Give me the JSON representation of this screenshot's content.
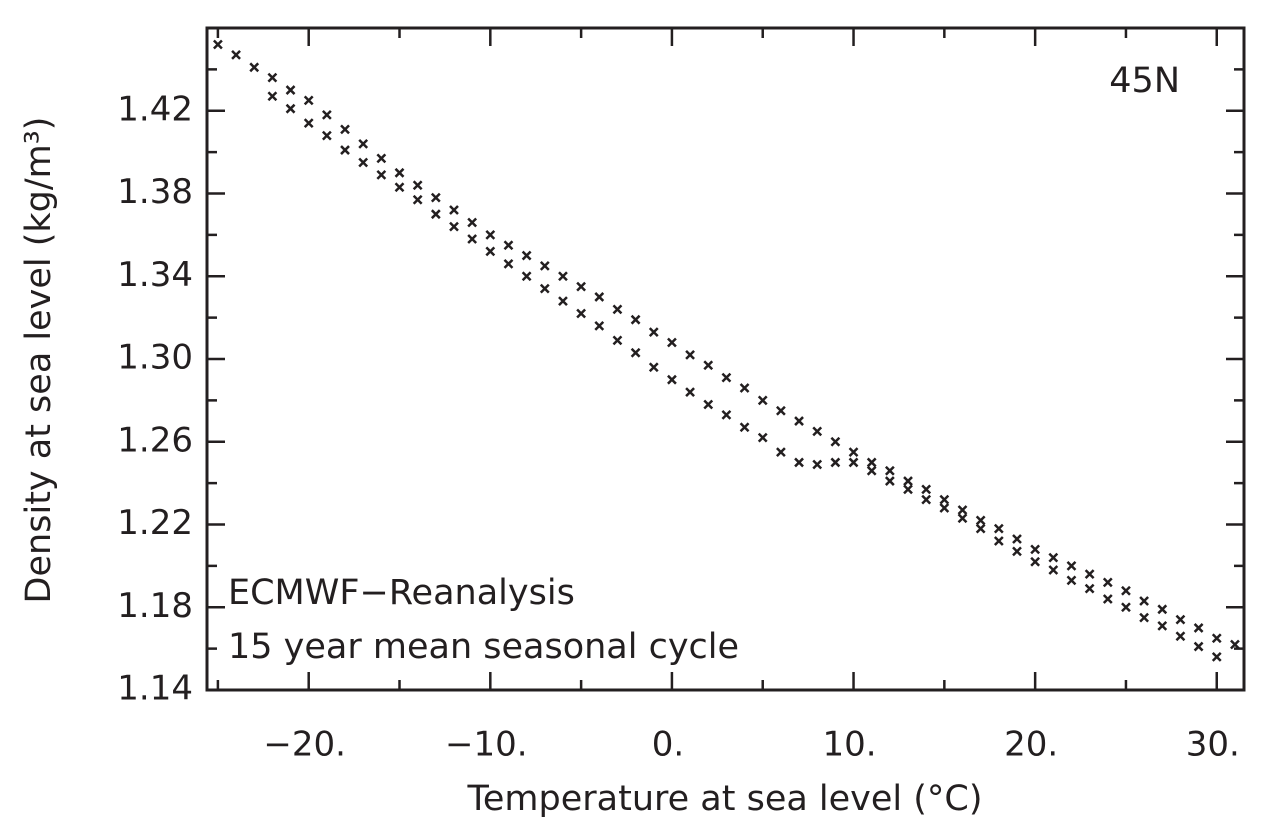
{
  "chart_data": {
    "type": "scatter",
    "xlabel": "Temperature at sea level (°C)",
    "ylabel": "Density at sea level (kg/m³)",
    "annotations": [
      "45N",
      "ECMWF−Reanalysis",
      "15 year mean seasonal cycle"
    ],
    "xlim": [
      -25.6,
      31.5
    ],
    "ylim": [
      1.14,
      1.46
    ],
    "xticks": [
      {
        "value": -20,
        "label": "−20."
      },
      {
        "value": -10,
        "label": "−10."
      },
      {
        "value": 0,
        "label": "0."
      },
      {
        "value": 10,
        "label": "10."
      },
      {
        "value": 20,
        "label": "20."
      },
      {
        "value": 30,
        "label": "30."
      }
    ],
    "xminorticks": [
      -25,
      -15,
      -5,
      5,
      15,
      25
    ],
    "yticks": [
      {
        "value": 1.14,
        "label": "1.14"
      },
      {
        "value": 1.18,
        "label": "1.18"
      },
      {
        "value": 1.22,
        "label": "1.22"
      },
      {
        "value": 1.26,
        "label": "1.26"
      },
      {
        "value": 1.3,
        "label": "1.30"
      },
      {
        "value": 1.34,
        "label": "1.34"
      },
      {
        "value": 1.38,
        "label": "1.38"
      },
      {
        "value": 1.42,
        "label": "1.42"
      }
    ],
    "yminorticks": [
      1.16,
      1.2,
      1.24,
      1.28,
      1.32,
      1.36,
      1.4,
      1.44
    ],
    "series": [
      {
        "color": "#231f20",
        "x": [
          -25,
          -24,
          -23,
          -22,
          -21,
          -20,
          -19,
          -18,
          -17,
          -16,
          -15,
          -14,
          -13,
          -12,
          -11,
          -10,
          -9,
          -8,
          -7,
          -6,
          -5,
          -4,
          -3,
          -2,
          -1,
          0,
          1,
          2,
          3,
          4,
          5,
          6,
          7,
          8,
          9,
          10,
          11,
          12,
          13,
          14,
          15,
          16,
          17,
          18,
          19,
          20,
          21,
          22,
          23,
          24,
          25,
          26,
          27,
          28,
          29,
          30,
          31,
          -22,
          -21,
          -20,
          -19,
          -18,
          -17,
          -16,
          -15,
          -14,
          -13,
          -12,
          -11,
          -10,
          -9,
          -8,
          -7,
          -6,
          -5,
          -4,
          -3,
          -2,
          -1,
          0,
          1,
          2,
          3,
          4,
          5,
          6,
          7,
          8,
          9,
          10,
          11,
          12,
          13,
          14,
          15,
          16,
          17,
          18,
          19,
          20,
          21,
          22,
          23,
          24,
          25,
          26,
          27,
          28,
          29,
          30
        ],
        "y": [
          1.452,
          1.447,
          1.441,
          1.436,
          1.43,
          1.425,
          1.418,
          1.411,
          1.404,
          1.397,
          1.39,
          1.384,
          1.378,
          1.372,
          1.366,
          1.36,
          1.355,
          1.35,
          1.345,
          1.34,
          1.335,
          1.33,
          1.324,
          1.319,
          1.313,
          1.308,
          1.302,
          1.297,
          1.291,
          1.286,
          1.28,
          1.275,
          1.27,
          1.265,
          1.26,
          1.255,
          1.25,
          1.246,
          1.241,
          1.237,
          1.232,
          1.227,
          1.222,
          1.218,
          1.213,
          1.208,
          1.204,
          1.2,
          1.196,
          1.192,
          1.188,
          1.183,
          1.179,
          1.174,
          1.17,
          1.165,
          1.162,
          1.427,
          1.421,
          1.414,
          1.408,
          1.401,
          1.395,
          1.389,
          1.383,
          1.377,
          1.37,
          1.364,
          1.358,
          1.352,
          1.346,
          1.34,
          1.334,
          1.328,
          1.322,
          1.316,
          1.309,
          1.303,
          1.296,
          1.29,
          1.284,
          1.278,
          1.273,
          1.267,
          1.262,
          1.255,
          1.25,
          1.249,
          1.25,
          1.25,
          1.246,
          1.241,
          1.237,
          1.232,
          1.228,
          1.223,
          1.218,
          1.212,
          1.207,
          1.202,
          1.198,
          1.193,
          1.189,
          1.184,
          1.18,
          1.175,
          1.171,
          1.166,
          1.161,
          1.156
        ]
      }
    ]
  }
}
